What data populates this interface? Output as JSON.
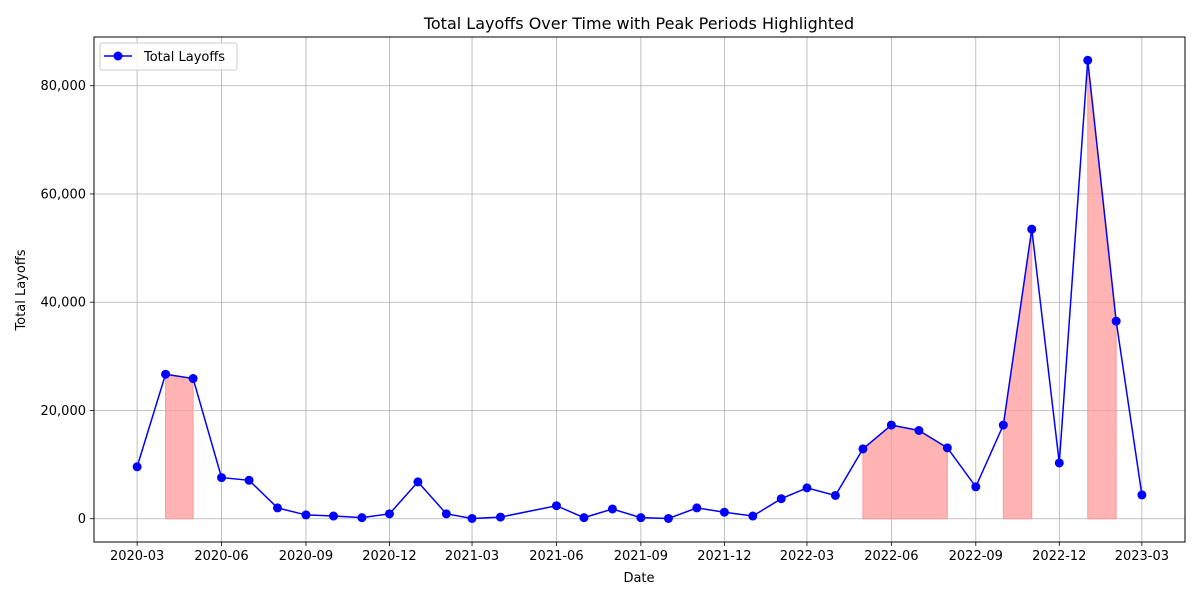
{
  "chart_data": {
    "type": "line",
    "title": "Total Layoffs Over Time with Peak Periods Highlighted",
    "xlabel": "Date",
    "ylabel": "Total Layoffs",
    "xlim": [
      "2020-01-14",
      "2023-04-17"
    ],
    "ylim": [
      -4300,
      89000
    ],
    "grid": true,
    "legend_position": "top-left",
    "x_ticks": [
      "2020-03-01",
      "2020-06-01",
      "2020-09-01",
      "2020-12-01",
      "2021-03-01",
      "2021-06-01",
      "2021-09-01",
      "2021-12-01",
      "2022-03-01",
      "2022-06-01",
      "2022-09-01",
      "2022-12-01",
      "2023-03-01"
    ],
    "x_tick_labels": [
      "2020-03",
      "2020-06",
      "2020-09",
      "2020-12",
      "2021-03",
      "2021-06",
      "2021-09",
      "2021-12",
      "2022-03",
      "2022-06",
      "2022-09",
      "2022-12",
      "2023-03"
    ],
    "y_ticks": [
      0,
      20000,
      40000,
      60000,
      80000
    ],
    "y_tick_labels": [
      "0",
      "20,000",
      "40,000",
      "60,000",
      "80,000"
    ],
    "series": [
      {
        "name": "Total Layoffs",
        "color": "#0000ff",
        "marker": "circle",
        "x": [
          "2020-03-01",
          "2020-04-01",
          "2020-05-01",
          "2020-06-01",
          "2020-07-01",
          "2020-08-01",
          "2020-09-01",
          "2020-10-01",
          "2020-11-01",
          "2020-12-01",
          "2021-01-01",
          "2021-02-01",
          "2021-03-01",
          "2021-04-01",
          "2021-06-01",
          "2021-07-01",
          "2021-08-01",
          "2021-09-01",
          "2021-10-01",
          "2021-11-01",
          "2021-12-01",
          "2022-01-01",
          "2022-02-01",
          "2022-03-01",
          "2022-04-01",
          "2022-05-01",
          "2022-06-01",
          "2022-07-01",
          "2022-08-01",
          "2022-09-01",
          "2022-10-01",
          "2022-11-01",
          "2022-12-01",
          "2023-01-01",
          "2023-02-01",
          "2023-03-01"
        ],
        "values": [
          9600,
          26700,
          25900,
          7600,
          7100,
          2000,
          700,
          500,
          200,
          900,
          6800,
          900,
          50,
          300,
          2400,
          200,
          1800,
          200,
          50,
          2000,
          1200,
          500,
          3700,
          5700,
          4300,
          12900,
          17300,
          16300,
          13100,
          5900,
          17300,
          53500,
          10300,
          84700,
          36500,
          4400
        ]
      }
    ],
    "highlight_periods": [
      {
        "start": "2020-04-01",
        "end": "2020-05-01"
      },
      {
        "start": "2022-05-01",
        "end": "2022-08-01"
      },
      {
        "start": "2022-10-01",
        "end": "2022-11-01"
      },
      {
        "start": "2023-01-01",
        "end": "2023-02-01"
      }
    ],
    "highlight_color": "#ff9999"
  }
}
